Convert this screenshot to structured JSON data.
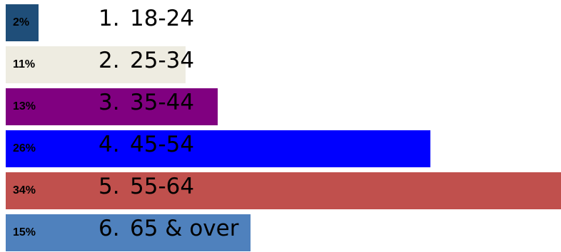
{
  "chart_data": {
    "type": "bar",
    "orientation": "horizontal",
    "categories": [
      "1.",
      "2.",
      "3.",
      "4.",
      "5.",
      "6."
    ],
    "category_labels": [
      "18-24",
      "25-34",
      "35-44",
      "45-54",
      "55-64",
      "65 & over"
    ],
    "values": [
      2,
      11,
      13,
      26,
      34,
      15
    ],
    "data_labels": [
      "2%",
      "11%",
      "13%",
      "26%",
      "34%",
      "15%"
    ],
    "colors": [
      "#1f4e79",
      "#eeece1",
      "#800080",
      "#0000ff",
      "#c0504d",
      "#4f81bd"
    ],
    "title": "",
    "xlabel": "",
    "ylabel": "",
    "xlim": [
      0,
      34
    ],
    "grid": false,
    "legend": "none"
  }
}
